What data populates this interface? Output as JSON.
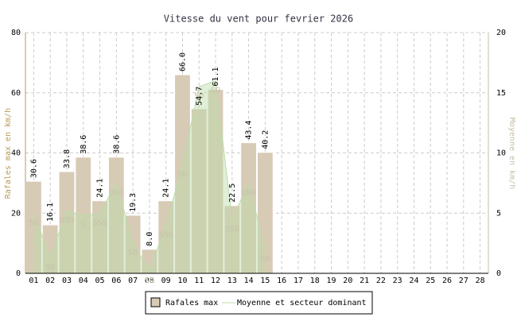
{
  "chart_data": {
    "type": "bar",
    "title": "Vitesse du vent pour fevrier 2026",
    "y_label": "Rafales max en km/h",
    "y2_label": "Moyenne en km/h",
    "categories": [
      "01",
      "02",
      "03",
      "04",
      "05",
      "06",
      "07",
      "08",
      "09",
      "10",
      "11",
      "12",
      "13",
      "14",
      "15",
      "16",
      "17",
      "18",
      "19",
      "20",
      "21",
      "22",
      "23",
      "24",
      "25",
      "26",
      "27",
      "28"
    ],
    "series": [
      {
        "name": "Rafales max",
        "color": "#d7cbb6",
        "values": [
          30.6,
          16.1,
          33.8,
          38.6,
          24.1,
          38.6,
          19.3,
          8.0,
          24.1,
          66.0,
          54.7,
          61.1,
          22.5,
          43.4,
          40.2,
          null,
          null,
          null,
          null,
          null,
          null,
          null,
          null,
          null,
          null,
          null,
          null,
          null
        ],
        "value_labels": [
          "30.6",
          "16.1",
          "33.8",
          "38.6",
          "24.1",
          "38.6",
          "19.3",
          "8.0",
          "24.1",
          "66.0",
          "54.7",
          "61.1",
          "22.5",
          "43.4",
          "40.2",
          null,
          null,
          null,
          null,
          null,
          null,
          null,
          null,
          null,
          null,
          null,
          null,
          null
        ]
      },
      {
        "name": "Moyenne et secteur dominant",
        "color": "#bcdca8",
        "axis": "y2",
        "values": [
          5,
          1.3,
          5.2,
          4.8,
          5,
          7.5,
          2.5,
          0.2,
          4,
          9,
          15.5,
          16,
          4.5,
          7.5,
          2,
          null,
          null,
          null,
          null,
          null,
          null,
          null,
          null,
          null,
          null,
          null,
          null,
          null
        ],
        "sectors": [
          "SO",
          "SO",
          "OSO",
          "S",
          "SSO",
          "OSO",
          "SO",
          "SO",
          "SSO",
          "SO",
          "SO",
          "SO",
          "SSO",
          "ONO",
          "SO",
          null,
          null,
          null,
          null,
          null,
          null,
          null,
          null,
          null,
          null,
          null,
          null,
          null
        ]
      }
    ],
    "ylim": [
      0,
      80
    ],
    "yticks": [
      0,
      20,
      40,
      60,
      80
    ],
    "y2lim": [
      0,
      20
    ],
    "y2ticks": [
      0,
      5,
      10,
      15,
      20
    ],
    "grid": true,
    "legend": "bottom"
  }
}
